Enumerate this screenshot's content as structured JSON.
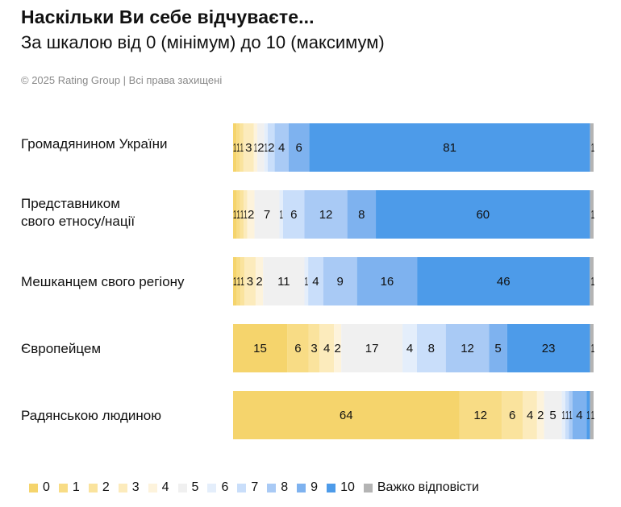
{
  "header": {
    "title": "Наскільки Ви себе відчуваєте...",
    "subtitle": "За шкалою від 0 (мінімум) до 10 (максимум)",
    "copyright": "© 2025 Rating Group | Всі права захищені"
  },
  "chart_data": {
    "type": "bar",
    "orientation": "horizontal",
    "stacked": true,
    "normalized": true,
    "legend_position": "bottom",
    "categories": [
      "Громадянином України",
      "Представником\nсвого етносу/нації",
      "Мешканцем свого регіону",
      "Європейцем",
      "Радянською людиною"
    ],
    "series": [
      {
        "name": "0",
        "color": "#f5d46c",
        "values": [
          1,
          1,
          1,
          15,
          64
        ]
      },
      {
        "name": "1",
        "color": "#f8dc85",
        "values": [
          1,
          1,
          1,
          6,
          12
        ]
      },
      {
        "name": "2",
        "color": "#fae39d",
        "values": [
          1,
          1,
          1,
          3,
          6
        ]
      },
      {
        "name": "3",
        "color": "#fcebbc",
        "values": [
          3,
          1,
          3,
          4,
          4
        ]
      },
      {
        "name": "4",
        "color": "#fdf3dc",
        "values": [
          1,
          2,
          2,
          2,
          2
        ]
      },
      {
        "name": "5",
        "color": "#f0f0f0",
        "values": [
          2,
          7,
          11,
          17,
          5
        ]
      },
      {
        "name": "6",
        "color": "#e4eefb",
        "values": [
          1,
          1,
          1,
          4,
          1
        ]
      },
      {
        "name": "7",
        "color": "#c9defa",
        "values": [
          2,
          6,
          4,
          8,
          1
        ]
      },
      {
        "name": "8",
        "color": "#a9caf5",
        "values": [
          4,
          12,
          9,
          12,
          1
        ]
      },
      {
        "name": "9",
        "color": "#7eb2ef",
        "values": [
          6,
          8,
          16,
          5,
          4
        ]
      },
      {
        "name": "10",
        "color": "#4d9be9",
        "values": [
          81,
          60,
          46,
          23,
          1
        ]
      },
      {
        "name": "Важко відповісти",
        "color": "#b4b4b4",
        "values": [
          1,
          1,
          1,
          1,
          1
        ]
      }
    ]
  }
}
